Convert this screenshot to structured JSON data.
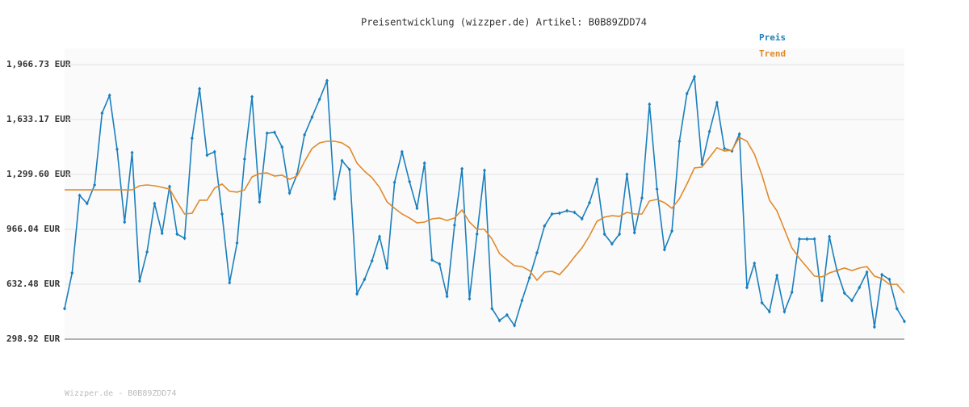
{
  "chart_data": {
    "type": "line",
    "title": "Preisentwicklung (wizzper.de) Artikel: B0B89ZDD74",
    "footer": "Wizzper.de - B0B89ZDD74",
    "ylim": [
      298.92,
      1966.73
    ],
    "yticks": [
      {
        "value": 298.92,
        "label": "298.92 EUR"
      },
      {
        "value": 632.48,
        "label": "632.48 EUR"
      },
      {
        "value": 966.04,
        "label": "966.04 EUR"
      },
      {
        "value": 1299.6,
        "label": "1,299.60 EUR"
      },
      {
        "value": 1633.17,
        "label": "1,633.17 EUR"
      },
      {
        "value": 1966.73,
        "label": "1,966.73 EUR"
      }
    ],
    "grid": true,
    "legend": "top-right",
    "series": [
      {
        "name": "Preis",
        "color": "#1b7fbd",
        "markers": true,
        "values": [
          485,
          701,
          1172,
          1123,
          1236,
          1672,
          1780,
          1452,
          1010,
          1432,
          652,
          829,
          1123,
          942,
          1226,
          937,
          912,
          1520,
          1820,
          1417,
          1437,
          1059,
          642,
          883,
          1393,
          1771,
          1133,
          1550,
          1555,
          1466,
          1187,
          1300,
          1540,
          1648,
          1756,
          1869,
          1152,
          1383,
          1329,
          574,
          662,
          775,
          922,
          731,
          1251,
          1437,
          1256,
          1094,
          1368,
          780,
          755,
          559,
          991,
          1334,
          544,
          937,
          1324,
          485,
          412,
          446,
          382,
          534,
          672,
          824,
          986,
          1059,
          1064,
          1079,
          1069,
          1030,
          1128,
          1270,
          937,
          878,
          937,
          1300,
          946,
          1157,
          1726,
          1211,
          843,
          956,
          1501,
          1790,
          1893,
          1363,
          1560,
          1736,
          1457,
          1442,
          1545,
          613,
          760,
          520,
          466,
          686,
          466,
          584,
          907,
          907,
          907,
          534,
          922,
          716,
          579,
          534,
          613,
          706,
          373,
          691,
          662,
          485,
          407
        ]
      },
      {
        "name": "Trend",
        "color": "#e08a2b",
        "markers": false,
        "values": [
          1206,
          1206,
          1206,
          1206,
          1206,
          1206,
          1206,
          1206,
          1206,
          1206,
          1231,
          1236,
          1231,
          1221,
          1211,
          1133,
          1059,
          1064,
          1143,
          1143,
          1216,
          1241,
          1197,
          1192,
          1206,
          1285,
          1305,
          1309,
          1290,
          1295,
          1270,
          1290,
          1378,
          1457,
          1491,
          1501,
          1501,
          1491,
          1462,
          1368,
          1319,
          1280,
          1221,
          1133,
          1094,
          1059,
          1035,
          1005,
          1010,
          1030,
          1035,
          1020,
          1035,
          1084,
          1010,
          966,
          966,
          907,
          819,
          780,
          745,
          740,
          716,
          657,
          706,
          711,
          691,
          740,
          799,
          853,
          927,
          1015,
          1040,
          1049,
          1045,
          1069,
          1059,
          1059,
          1138,
          1148,
          1128,
          1094,
          1152,
          1241,
          1339,
          1344,
          1403,
          1462,
          1442,
          1447,
          1525,
          1501,
          1422,
          1295,
          1143,
          1079,
          966,
          853,
          790,
          736,
          682,
          677,
          701,
          716,
          731,
          716,
          731,
          740,
          682,
          667,
          632,
          632,
          579
        ]
      }
    ]
  }
}
